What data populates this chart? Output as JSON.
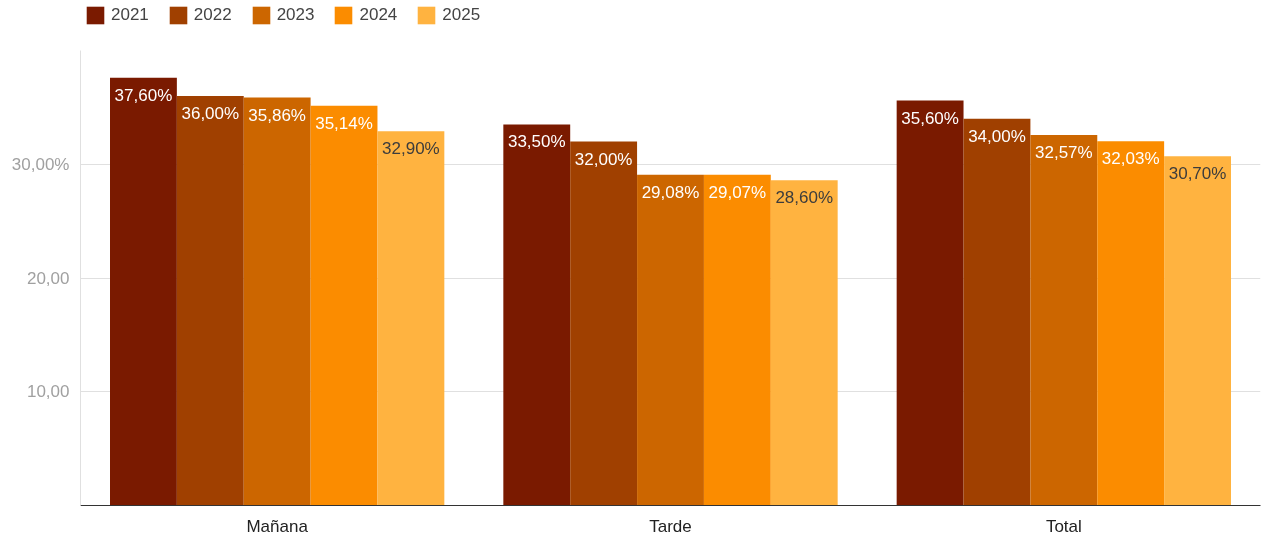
{
  "chart_data": {
    "type": "bar",
    "categories": [
      "Mañana",
      "Tarde",
      "Total"
    ],
    "series": [
      {
        "name": "2021",
        "color": "#7a1a00",
        "values": [
          37.6,
          33.5,
          35.6
        ],
        "value_labels": [
          "37,60%",
          "33,50%",
          "35,60%"
        ]
      },
      {
        "name": "2022",
        "color": "#a04000",
        "values": [
          36.0,
          32.0,
          34.0
        ],
        "value_labels": [
          "36,00%",
          "32,00%",
          "34,00%"
        ]
      },
      {
        "name": "2023",
        "color": "#cc6600",
        "values": [
          35.86,
          29.08,
          32.57
        ],
        "value_labels": [
          "35,86%",
          "29,08%",
          "32,57%"
        ]
      },
      {
        "name": "2024",
        "color": "#fb8c00",
        "values": [
          35.14,
          29.07,
          32.03
        ],
        "value_labels": [
          "35,14%",
          "29,07%",
          "32,03%"
        ]
      },
      {
        "name": "2025",
        "color": "#ffb340",
        "values": [
          32.9,
          28.6,
          30.7
        ],
        "value_labels": [
          "32,90%",
          "28,60%",
          "30,70%"
        ]
      }
    ],
    "ylim": [
      0,
      40
    ],
    "yticks": [
      {
        "value": 10,
        "label": "10,00"
      },
      {
        "value": 20,
        "label": "20,00"
      },
      {
        "value": 30,
        "label": "30,00%"
      }
    ],
    "grid": "y",
    "legend": "top left"
  }
}
